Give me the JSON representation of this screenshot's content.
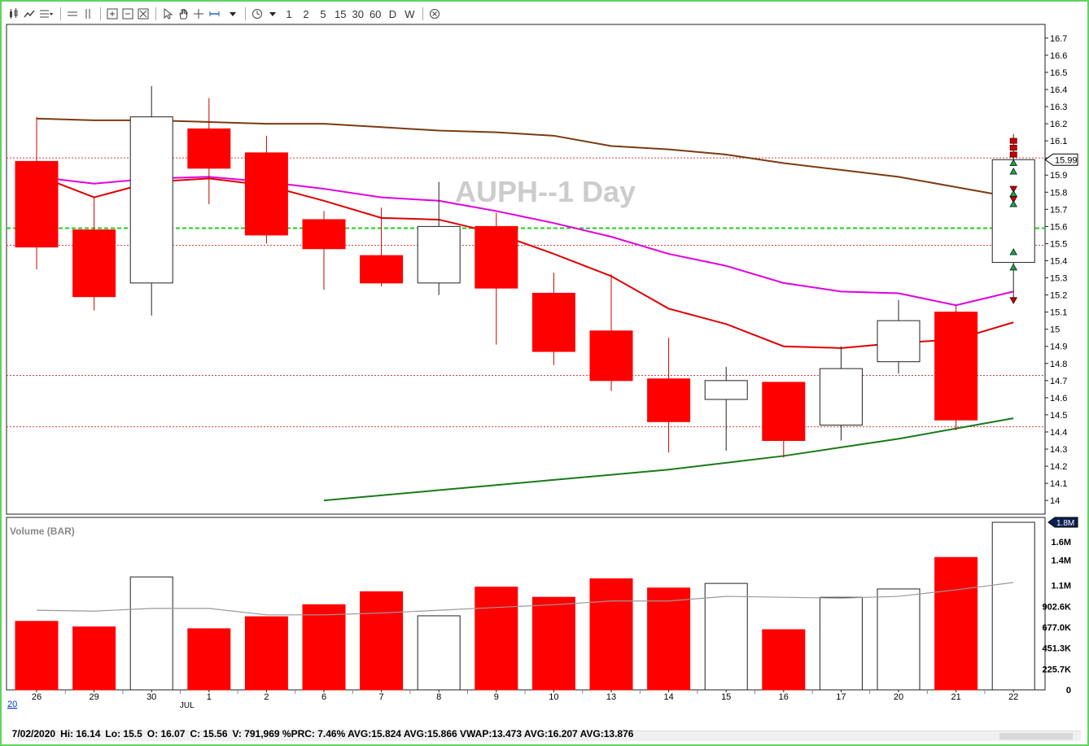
{
  "toolbar": {
    "chart_type_icon": "candlestick-icon",
    "line_icon": "line-chart-icon",
    "study_icon": "study-list-icon",
    "hline_icon": "horizontal-line-icon",
    "vline_icon": "vertical-line-icon",
    "zoom_icons": [
      "zoom-in-icon",
      "zoom-out-icon",
      "zoom-fit-icon"
    ],
    "cursor_icon": "cursor-icon",
    "hand_icon": "hand-icon",
    "crosshair_icon": "crosshair-icon",
    "measure_icon": "measure-icon",
    "clock_icon": "clock-icon",
    "intervals": [
      "1",
      "2",
      "5",
      "15",
      "30",
      "60",
      "D",
      "W"
    ],
    "close_icon": "close-circle-icon"
  },
  "chart_data": [
    {
      "type": "candlestick",
      "title": "AUPH--1 Day",
      "ylim": [
        13.92,
        16.78
      ],
      "y_ticks": [
        "16.7",
        "16.6",
        "16.5",
        "16.4",
        "16.3",
        "16.2",
        "16.1",
        "16",
        "15.9",
        "15.8",
        "15.7",
        "15.6",
        "15.5",
        "15.4",
        "15.3",
        "15.2",
        "15.1",
        "15",
        "14.9",
        "14.8",
        "14.7",
        "14.6",
        "14.5",
        "14.4",
        "14.3",
        "14.2",
        "14.1",
        "14"
      ],
      "x_labels": [
        "26",
        "29",
        "30",
        "1",
        "2",
        "6",
        "7",
        "8",
        "9",
        "10",
        "13",
        "14",
        "15",
        "16",
        "17",
        "20",
        "21",
        "22"
      ],
      "month_label": "JUL",
      "month_label_index": 3,
      "last_price_label": "15.99",
      "candles": [
        {
          "o": 15.98,
          "h": 16.24,
          "l": 15.35,
          "c": 15.48
        },
        {
          "o": 15.58,
          "h": 15.77,
          "l": 15.11,
          "c": 15.19
        },
        {
          "o": 15.27,
          "h": 16.42,
          "l": 15.08,
          "c": 16.24
        },
        {
          "o": 16.17,
          "h": 16.35,
          "l": 15.73,
          "c": 15.94
        },
        {
          "o": 16.03,
          "h": 16.13,
          "l": 15.5,
          "c": 15.55
        },
        {
          "o": 15.64,
          "h": 15.69,
          "l": 15.23,
          "c": 15.47
        },
        {
          "o": 15.43,
          "h": 15.71,
          "l": 15.25,
          "c": 15.27
        },
        {
          "o": 15.27,
          "h": 15.86,
          "l": 15.2,
          "c": 15.6
        },
        {
          "o": 15.6,
          "h": 15.68,
          "l": 14.91,
          "c": 15.24
        },
        {
          "o": 15.21,
          "h": 15.33,
          "l": 14.79,
          "c": 14.87
        },
        {
          "o": 14.99,
          "h": 15.32,
          "l": 14.64,
          "c": 14.7
        },
        {
          "o": 14.71,
          "h": 14.95,
          "l": 14.28,
          "c": 14.46
        },
        {
          "o": 14.59,
          "h": 14.78,
          "l": 14.29,
          "c": 14.7
        },
        {
          "o": 14.69,
          "h": 14.69,
          "l": 14.25,
          "c": 14.35
        },
        {
          "o": 14.44,
          "h": 14.9,
          "l": 14.35,
          "c": 14.77
        },
        {
          "o": 14.81,
          "h": 15.17,
          "l": 14.74,
          "c": 15.05
        },
        {
          "o": 15.1,
          "h": 15.14,
          "l": 14.41,
          "c": 14.47
        },
        {
          "o": 15.39,
          "h": 16.14,
          "l": 15.16,
          "c": 15.99
        }
      ],
      "overlays": [
        {
          "name": "",
          "color": "#7a3b12",
          "values": [
            16.23,
            16.22,
            16.22,
            16.21,
            16.2,
            16.2,
            16.18,
            16.16,
            16.15,
            16.13,
            16.07,
            16.05,
            16.02,
            15.97,
            15.93,
            15.89,
            15.83,
            15.77
          ]
        },
        {
          "name": "",
          "color": "#e000e0",
          "values": [
            15.89,
            15.85,
            15.88,
            15.89,
            15.86,
            15.82,
            15.77,
            15.75,
            15.69,
            15.62,
            15.54,
            15.44,
            15.37,
            15.27,
            15.22,
            15.21,
            15.14,
            15.22
          ]
        },
        {
          "name": "",
          "color": "#e00000",
          "values": [
            15.9,
            15.77,
            15.86,
            15.88,
            15.84,
            15.75,
            15.65,
            15.64,
            15.56,
            15.44,
            15.31,
            15.12,
            15.03,
            14.9,
            14.89,
            14.92,
            14.94,
            15.04
          ]
        },
        {
          "name": "",
          "color": "#1a7a1a",
          "values": [
            null,
            null,
            null,
            null,
            null,
            14.0,
            14.03,
            14.06,
            14.09,
            14.12,
            14.15,
            14.18,
            14.22,
            14.26,
            14.31,
            14.36,
            14.42,
            14.48
          ]
        }
      ],
      "horizontal_lines": [
        {
          "value": 15.59,
          "color": "#22cc22",
          "style": "dashed"
        },
        {
          "value": 16.0,
          "color": "#d04040",
          "style": "dotted"
        },
        {
          "value": 15.49,
          "color": "#d04040",
          "style": "dotted"
        },
        {
          "value": 14.73,
          "color": "#d04040",
          "style": "dotted"
        },
        {
          "value": 14.43,
          "color": "#d04040",
          "style": "dotted"
        }
      ],
      "markers": [
        {
          "value": 16.1,
          "shape": "square",
          "color": "#cc0000"
        },
        {
          "value": 16.06,
          "shape": "square",
          "color": "#cc0000"
        },
        {
          "value": 16.02,
          "shape": "square",
          "color": "#cc0000"
        },
        {
          "value": 15.97,
          "shape": "triangle-up",
          "color": "#22aa22"
        },
        {
          "value": 15.92,
          "shape": "triangle-up",
          "color": "#22aa22"
        },
        {
          "value": 15.82,
          "shape": "triangle-down",
          "color": "#cc0000"
        },
        {
          "value": 15.79,
          "shape": "triangle-up",
          "color": "#22aa22"
        },
        {
          "value": 15.76,
          "shape": "triangle-down",
          "color": "#cc0000"
        },
        {
          "value": 15.73,
          "shape": "triangle-up",
          "color": "#22aa22"
        },
        {
          "value": 15.45,
          "shape": "triangle-up",
          "color": "#22aa22"
        },
        {
          "value": 15.36,
          "shape": "triangle-up",
          "color": "#22aa22"
        },
        {
          "value": 15.17,
          "shape": "triangle-down",
          "color": "#cc0000"
        }
      ]
    },
    {
      "type": "bar",
      "title": "Volume (BAR)",
      "ylim": [
        0,
        1810000
      ],
      "y_ticks": [
        {
          "label": "1.6M",
          "value": 1600000
        },
        {
          "label": "1.4M",
          "value": 1400000
        },
        {
          "label": "1.1M",
          "value": 1130000
        },
        {
          "label": "902.6K",
          "value": 902600
        },
        {
          "label": "677.0K",
          "value": 677000
        },
        {
          "label": "451.3K",
          "value": 451300
        },
        {
          "label": "225.7K",
          "value": 225700
        },
        {
          "label": "0",
          "value": 0
        }
      ],
      "last_value_label": "1.8M",
      "values": [
        740000,
        680000,
        1220000,
        660000,
        790000,
        920000,
        1060000,
        800000,
        1110000,
        1000000,
        1200000,
        1100000,
        1150000,
        650000,
        1000000,
        1090000,
        1430000,
        1810000
      ],
      "up": [
        false,
        false,
        true,
        false,
        false,
        false,
        false,
        true,
        false,
        false,
        false,
        false,
        true,
        false,
        true,
        true,
        false,
        true
      ],
      "average": {
        "color": "#999999",
        "values": [
          860000,
          850000,
          880000,
          880000,
          810000,
          810000,
          830000,
          860000,
          890000,
          920000,
          960000,
          960000,
          1010000,
          1000000,
          990000,
          1010000,
          1080000,
          1160000
        ]
      }
    }
  ],
  "footer": {
    "corner_label": "20",
    "status": [
      "7/02/2020",
      "Hi: 16.14",
      "Lo: 15.5",
      "O: 16.07",
      "C: 15.56",
      "V: 791,969 %PRC: 7.46% AVG:15.824 AVG:15.866 VWAP:13.473 AVG:16.207 AVG:13.876"
    ]
  },
  "colors": {
    "down": "#ff0000",
    "up": "#ffffff",
    "frame": "#5fd35f",
    "title_watermark": "#cccccc"
  }
}
